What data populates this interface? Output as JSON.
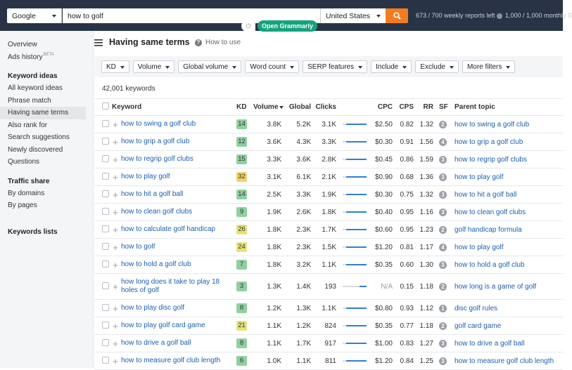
{
  "top_bar": {
    "engine": "Google",
    "query": "how to golf",
    "country": "United States",
    "reports": "673 / 700 weekly reports left",
    "monthly": "1,000 / 1,000 monthly S",
    "grammarly": "Open Grammarly"
  },
  "sidebar": [
    {
      "items": [
        {
          "label": "Overview"
        },
        {
          "label": "Ads history",
          "badge": "BETA"
        }
      ]
    },
    {
      "title": "Keyword ideas",
      "items": [
        {
          "label": "All keyword ideas"
        },
        {
          "label": "Phrase match"
        },
        {
          "label": "Having same terms",
          "active": true
        },
        {
          "label": "Also rank for"
        },
        {
          "label": "Search suggestions"
        },
        {
          "label": "Newly discovered"
        },
        {
          "label": "Questions"
        }
      ]
    },
    {
      "title": "Traffic share",
      "items": [
        {
          "label": "By domains"
        },
        {
          "label": "By pages"
        }
      ]
    },
    {
      "title": "Keywords lists",
      "items": []
    }
  ],
  "header": {
    "title": "Having same terms",
    "help": "How to use"
  },
  "filters": [
    "KD",
    "Volume",
    "Global volume",
    "Word count",
    "SERP features",
    "Include",
    "Exclude",
    "More filters"
  ],
  "count": "42,001 keywords",
  "table": {
    "columns": [
      "Keyword",
      "KD",
      "Volume",
      "Global",
      "Clicks",
      "CPC",
      "CPS",
      "RR",
      "SF",
      "Parent topic"
    ],
    "rows": [
      [
        "how to swing a golf club",
        "14",
        "3.8K",
        "5.2K",
        "3.1K",
        "$2.50",
        "0.82",
        "1.32",
        "2",
        "how to swing a golf club"
      ],
      [
        "how to grip a golf club",
        "12",
        "3.6K",
        "4.3K",
        "3.3K",
        "$0.30",
        "0.91",
        "1.56",
        "4",
        "how to grip a golf club"
      ],
      [
        "how to regrip golf clubs",
        "15",
        "3.3K",
        "3.6K",
        "2.8K",
        "$0.45",
        "0.86",
        "1.59",
        "3",
        "how to regrip golf clubs"
      ],
      [
        "how to play golf",
        "32",
        "3.1K",
        "6.1K",
        "2.1K",
        "$0.90",
        "0.68",
        "1.36",
        "3",
        "how to play golf"
      ],
      [
        "how to hit a golf ball",
        "14",
        "2.5K",
        "3.3K",
        "1.9K",
        "$0.30",
        "0.75",
        "1.32",
        "3",
        "how to hit a golf ball"
      ],
      [
        "how to clean golf clubs",
        "9",
        "1.9K",
        "2.6K",
        "1.8K",
        "$0.40",
        "0.95",
        "1.16",
        "3",
        "how to clean golf clubs"
      ],
      [
        "how to calculate golf handicap",
        "26",
        "1.8K",
        "2.3K",
        "1.7K",
        "$0.60",
        "0.95",
        "1.23",
        "2",
        "golf handicap formula"
      ],
      [
        "how to golf",
        "24",
        "1.8K",
        "2.3K",
        "1.5K",
        "$1.20",
        "0.81",
        "1.17",
        "4",
        "how to play golf"
      ],
      [
        "how to hold a golf club",
        "7",
        "1.8K",
        "3.2K",
        "1.1K",
        "$0.35",
        "0.60",
        "1.30",
        "3",
        "how to hold a golf club"
      ],
      [
        "how long does it take to play 18 holes of golf",
        "3",
        "1.3K",
        "1.4K",
        "193",
        "N/A",
        "0.15",
        "1.18",
        "2",
        "how long is a game of golf"
      ],
      [
        "how to play disc golf",
        "8",
        "1.2K",
        "1.3K",
        "1.1K",
        "$0.80",
        "0.93",
        "1.12",
        "1",
        "disc golf rules"
      ],
      [
        "how to play golf card game",
        "21",
        "1.1K",
        "1.2K",
        "824",
        "$0.35",
        "0.77",
        "1.18",
        "2",
        "golf card game"
      ],
      [
        "how to drive a golf ball",
        "8",
        "1.1K",
        "1.7K",
        "917",
        "$1.00",
        "0.83",
        "1.27",
        "3",
        "how to drive a golf ball"
      ],
      [
        "how to measure golf club length",
        "6",
        "1.0K",
        "1.1K",
        "811",
        "$1.20",
        "0.84",
        "1.25",
        "3",
        "how to measure golf club length"
      ]
    ]
  }
}
